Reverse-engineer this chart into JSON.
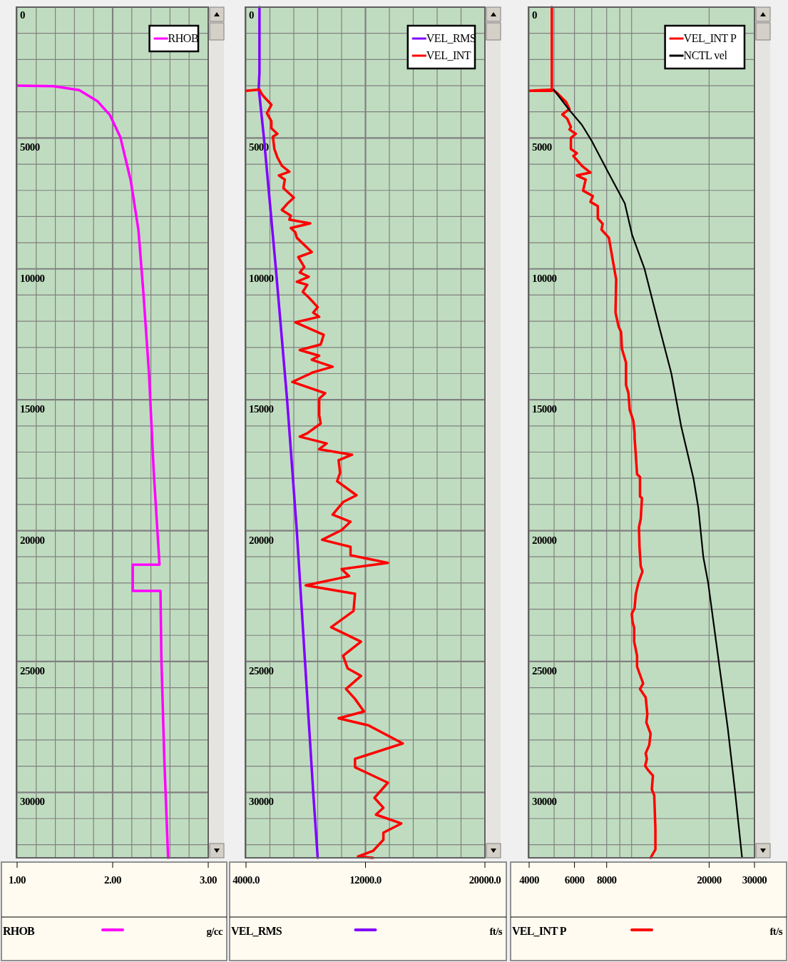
{
  "chart_data": [
    {
      "type": "line",
      "xlabel": "g/cc",
      "xlim": [
        1,
        3
      ],
      "xticks": [
        {
          "value": 1,
          "label": "1.00"
        },
        {
          "value": 1.2,
          "label": null
        },
        {
          "value": 1.4,
          "label": null
        },
        {
          "value": 1.6,
          "label": null
        },
        {
          "value": 1.8,
          "label": null
        },
        {
          "value": 2,
          "label": "2.00"
        },
        {
          "value": 2.2,
          "label": null
        },
        {
          "value": 2.4,
          "label": null
        },
        {
          "value": 2.6,
          "label": null
        },
        {
          "value": 2.8,
          "label": null
        },
        {
          "value": 3,
          "label": "3.00"
        }
      ],
      "ylim": [
        32500,
        0
      ],
      "yticks": [
        0,
        {
          "value": 1000,
          "label": null
        },
        {
          "value": 2000,
          "label": null
        },
        {
          "value": 3000,
          "label": null
        },
        {
          "value": 4000,
          "label": null
        },
        5000,
        {
          "value": 6000,
          "label": null
        },
        {
          "value": 7000,
          "label": null
        },
        {
          "value": 8000,
          "label": null
        },
        {
          "value": 9000,
          "label": null
        },
        10000,
        {
          "value": 11000,
          "label": null
        },
        {
          "value": 12000,
          "label": null
        },
        {
          "value": 13000,
          "label": null
        },
        {
          "value": 14000,
          "label": null
        },
        15000,
        {
          "value": 16000,
          "label": null
        },
        {
          "value": 17000,
          "label": null
        },
        {
          "value": 18000,
          "label": null
        },
        {
          "value": 19000,
          "label": null
        },
        20000,
        {
          "value": 21000,
          "label": null
        },
        {
          "value": 22000,
          "label": null
        },
        {
          "value": 23000,
          "label": null
        },
        {
          "value": 24000,
          "label": null
        },
        25000,
        {
          "value": 26000,
          "label": null
        },
        {
          "value": 27000,
          "label": null
        },
        {
          "value": 28000,
          "label": null
        },
        {
          "value": 29000,
          "label": null
        },
        30000,
        {
          "value": 31000,
          "label": null
        },
        {
          "value": 32000,
          "label": null
        }
      ],
      "grid": true,
      "legend": "top right",
      "series": [
        {
          "name": "RHOB",
          "color": "#ff00ff",
          "x": [
            1.0,
            1.38,
            1.65,
            1.84,
            1.97,
            2.08,
            2.19,
            2.27,
            2.32,
            2.38,
            2.43,
            2.49,
            2.21,
            2.21,
            2.5,
            2.51,
            2.54,
            2.58
          ],
          "values": [
            3000,
            3020,
            3170,
            3590,
            4120,
            4960,
            6640,
            8530,
            10840,
            13990,
            17770,
            21300,
            21300,
            22300,
            22300,
            24920,
            28700,
            32500
          ]
        }
      ]
    },
    {
      "type": "line",
      "xlabel": "ft/s",
      "xlim": [
        4000,
        20000
      ],
      "xticks": [
        {
          "value": 4000,
          "label": "4000.0"
        },
        {
          "value": 5600,
          "label": null
        },
        {
          "value": 7200,
          "label": null
        },
        {
          "value": 8800,
          "label": null
        },
        {
          "value": 10400,
          "label": null
        },
        {
          "value": 12000,
          "label": "12000.0"
        },
        {
          "value": 13600,
          "label": null
        },
        {
          "value": 15200,
          "label": null
        },
        {
          "value": 16800,
          "label": null
        },
        {
          "value": 18400,
          "label": null
        },
        {
          "value": 20000,
          "label": "20000.0"
        }
      ],
      "ylim": [
        32500,
        0
      ],
      "yticks": [
        0,
        {
          "value": 1000,
          "label": null
        },
        {
          "value": 2000,
          "label": null
        },
        {
          "value": 3000,
          "label": null
        },
        {
          "value": 4000,
          "label": null
        },
        5000,
        {
          "value": 6000,
          "label": null
        },
        {
          "value": 7000,
          "label": null
        },
        {
          "value": 8000,
          "label": null
        },
        {
          "value": 9000,
          "label": null
        },
        10000,
        {
          "value": 11000,
          "label": null
        },
        {
          "value": 12000,
          "label": null
        },
        {
          "value": 13000,
          "label": null
        },
        {
          "value": 14000,
          "label": null
        },
        15000,
        {
          "value": 16000,
          "label": null
        },
        {
          "value": 17000,
          "label": null
        },
        {
          "value": 18000,
          "label": null
        },
        {
          "value": 19000,
          "label": null
        },
        20000,
        {
          "value": 21000,
          "label": null
        },
        {
          "value": 22000,
          "label": null
        },
        {
          "value": 23000,
          "label": null
        },
        {
          "value": 24000,
          "label": null
        },
        25000,
        {
          "value": 26000,
          "label": null
        },
        {
          "value": 27000,
          "label": null
        },
        {
          "value": 28000,
          "label": null
        },
        {
          "value": 29000,
          "label": null
        },
        30000,
        {
          "value": 31000,
          "label": null
        },
        {
          "value": 32000,
          "label": null
        }
      ],
      "grid": true,
      "legend": "top right",
      "series": [
        {
          "name": "VEL_RMS",
          "color": "#8000ff",
          "x": [
            4900,
            4900,
            4850,
            5200,
            6000,
            6750,
            7400,
            7950,
            8500,
            8800
          ],
          "values": [
            0,
            2500,
            3100,
            5000,
            10000,
            15000,
            20000,
            25000,
            30000,
            32500
          ]
        },
        {
          "name": "VEL_INT",
          "color": "#ff0000",
          "x": [
            4000,
            4900,
            5100,
            5700,
            5400,
            5700,
            5700,
            6100,
            5800,
            5900,
            6100,
            6400,
            6900,
            6200,
            6600,
            6500,
            7200,
            6800,
            6400,
            7000,
            6900,
            8300,
            7000,
            7300,
            7400,
            8400,
            7500,
            7900,
            7600,
            8200,
            7400,
            8100,
            7800,
            8200,
            8800,
            8500,
            8900,
            7300,
            9200,
            9000,
            7600,
            8900,
            8400,
            9800,
            8500,
            7100,
            9300,
            8900,
            8900,
            9000,
            8100,
            7600,
            9400,
            8900,
            11100,
            10200,
            10300,
            10100,
            11400,
            10500,
            9800,
            11000,
            10400,
            9100,
            11000,
            11000,
            13500,
            10400,
            10900,
            8000,
            11300,
            11200,
            9700,
            11700,
            10500,
            10800,
            11700,
            10700,
            11300,
            11900,
            10200,
            12200,
            14500,
            11300,
            11300,
            13500,
            12600,
            13200,
            12700,
            14400,
            13200,
            13200,
            12500,
            11500,
            12500
          ],
          "values": [
            3200,
            3150,
            3360,
            3730,
            4050,
            4360,
            4630,
            4840,
            4950,
            5420,
            5740,
            6060,
            6290,
            6430,
            6590,
            6910,
            7280,
            7490,
            7750,
            7970,
            8120,
            8260,
            8440,
            8600,
            8810,
            9360,
            9550,
            9930,
            10140,
            10300,
            10490,
            10610,
            10880,
            11090,
            11460,
            11670,
            11830,
            12040,
            12520,
            12890,
            13100,
            13320,
            13470,
            13740,
            13950,
            14320,
            14750,
            14960,
            15590,
            15910,
            16280,
            16410,
            16670,
            16890,
            17100,
            17310,
            17790,
            18110,
            18650,
            18910,
            19390,
            19660,
            19980,
            20350,
            20620,
            20940,
            21230,
            21470,
            21740,
            22090,
            22410,
            23070,
            23690,
            24240,
            24780,
            25260,
            25550,
            26050,
            26430,
            26910,
            27170,
            27440,
            28130,
            28720,
            29040,
            29630,
            30210,
            30590,
            30850,
            31190,
            31540,
            31810,
            32240,
            32450,
            32500
          ]
        }
      ]
    },
    {
      "type": "line",
      "xlabel": "ft/s",
      "log": "x",
      "xlim": [
        4000,
        30000
      ],
      "xticks": [
        4000,
        {
          "value": 5000,
          "label": null
        },
        6000,
        {
          "value": 7000,
          "label": null
        },
        8000,
        {
          "value": 9000,
          "label": null
        },
        {
          "value": 10000,
          "label": null
        },
        20000,
        30000
      ],
      "ylim": [
        32500,
        0
      ],
      "yticks": [
        0,
        {
          "value": 1000,
          "label": null
        },
        {
          "value": 2000,
          "label": null
        },
        {
          "value": 3000,
          "label": null
        },
        {
          "value": 4000,
          "label": null
        },
        5000,
        {
          "value": 6000,
          "label": null
        },
        {
          "value": 7000,
          "label": null
        },
        {
          "value": 8000,
          "label": null
        },
        {
          "value": 9000,
          "label": null
        },
        10000,
        {
          "value": 11000,
          "label": null
        },
        {
          "value": 12000,
          "label": null
        },
        {
          "value": 13000,
          "label": null
        },
        {
          "value": 14000,
          "label": null
        },
        15000,
        {
          "value": 16000,
          "label": null
        },
        {
          "value": 17000,
          "label": null
        },
        {
          "value": 18000,
          "label": null
        },
        {
          "value": 19000,
          "label": null
        },
        20000,
        {
          "value": 21000,
          "label": null
        },
        {
          "value": 22000,
          "label": null
        },
        {
          "value": 23000,
          "label": null
        },
        {
          "value": 24000,
          "label": null
        },
        25000,
        {
          "value": 26000,
          "label": null
        },
        {
          "value": 27000,
          "label": null
        },
        {
          "value": 28000,
          "label": null
        },
        {
          "value": 29000,
          "label": null
        },
        30000,
        {
          "value": 31000,
          "label": null
        },
        {
          "value": 32000,
          "label": null
        }
      ],
      "grid": true,
      "legend": "top right",
      "series": [
        {
          "name": "VEL_INT P",
          "color": "#ff0000",
          "x": [
            4900,
            4900,
            4000,
            4900,
            5100,
            5560,
            5740,
            5380,
            5620,
            5810,
            5740,
            6070,
            5810,
            5810,
            6130,
            5940,
            6410,
            6920,
            6130,
            6630,
            6480,
            7070,
            6920,
            7390,
            7390,
            7720,
            7640,
            8160,
            8520,
            8710,
            8660,
            8900,
            9100,
            9170,
            9510,
            9510,
            9720,
            9830,
            10160,
            10270,
            10270,
            10380,
            10500,
            10780,
            10780,
            10970,
            10850,
            10680,
            10730,
            10850,
            11020,
            10620,
            10380,
            10270,
            10010,
            10090,
            10230,
            10230,
            10500,
            10500,
            11090,
            10780,
            11340,
            11510,
            11410,
            11850,
            11710,
            11340,
            11460,
            11290,
            11590,
            12100,
            11980,
            12240,
            12370,
            12370,
            11850
          ],
          "values": [
            0,
            3200,
            3200,
            3150,
            3250,
            3620,
            3890,
            4100,
            4260,
            4580,
            4680,
            4840,
            5000,
            5420,
            5580,
            5690,
            6060,
            6320,
            6430,
            6590,
            7010,
            7220,
            7440,
            7600,
            8070,
            8280,
            8500,
            8810,
            9870,
            10400,
            11670,
            12200,
            12410,
            13050,
            13580,
            14430,
            14750,
            15380,
            15810,
            16280,
            16460,
            17100,
            17850,
            17950,
            18700,
            18750,
            19550,
            19870,
            20620,
            21360,
            21560,
            22000,
            22430,
            22960,
            23180,
            23500,
            23710,
            24240,
            24780,
            25200,
            25840,
            26050,
            26370,
            27010,
            27330,
            27760,
            28190,
            28510,
            28720,
            28990,
            29150,
            29360,
            29890,
            30110,
            31380,
            32180,
            32500
          ]
        },
        {
          "name": "NCTL vel",
          "color": "#000000",
          "x": [
            4980,
            5740,
            6410,
            7000,
            8070,
            9410,
            10050,
            11210,
            12790,
            14270,
            15580,
            17380,
            18160,
            18980,
            19830,
            21650,
            23630,
            25240,
            26850
          ],
          "values": [
            3150,
            3940,
            4500,
            5110,
            6270,
            7500,
            8710,
            9980,
            12200,
            14000,
            16020,
            18000,
            19130,
            21000,
            22000,
            24780,
            27550,
            30000,
            32500
          ]
        }
      ]
    }
  ]
}
